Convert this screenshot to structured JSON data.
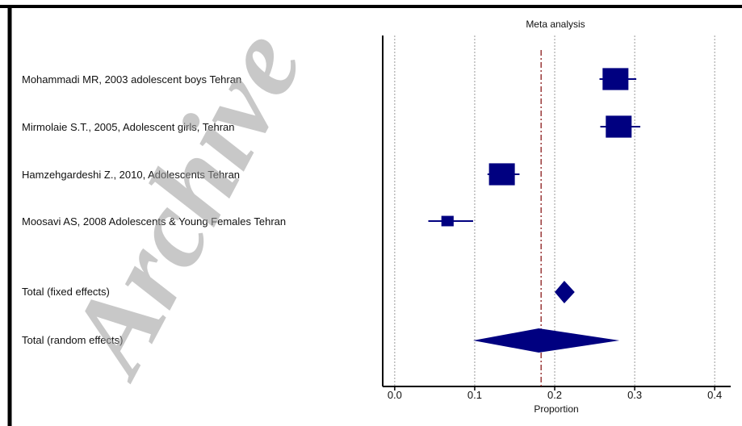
{
  "watermark": "Archive",
  "chart_data": {
    "type": "forest",
    "title": "Meta analysis",
    "xlabel": "Proportion",
    "xlim": [
      -0.015,
      0.42
    ],
    "xticks": [
      0.0,
      0.1,
      0.2,
      0.3,
      0.4
    ],
    "xtick_labels": [
      "0.0",
      "0.1",
      "0.2",
      "0.3",
      "0.4"
    ],
    "reference_line": 0.183,
    "grid": "vertical dotted at ticks",
    "colors": {
      "marker": "#000080",
      "reference": "#8b1a1a",
      "grid": "#9a9a9a"
    },
    "studies": [
      {
        "label": "Mohammadi MR, 2003  adolescent boys  Tehran",
        "estimate": 0.276,
        "ci": [
          0.256,
          0.302
        ],
        "weight": 1.0
      },
      {
        "label": "Mirmolaie S.T., 2005, Adolescent girls, Tehran",
        "estimate": 0.28,
        "ci": [
          0.257,
          0.307
        ],
        "weight": 1.0
      },
      {
        "label": "Hamzehgardeshi Z., 2010, Adolescents Tehran",
        "estimate": 0.134,
        "ci": [
          0.116,
          0.156
        ],
        "weight": 1.0
      },
      {
        "label": "Moosavi AS, 2008  Adolescents & Young Females  Tehran",
        "estimate": 0.066,
        "ci": [
          0.042,
          0.098
        ],
        "weight": 0.3
      }
    ],
    "pooled": [
      {
        "label": "Total (fixed effects)",
        "estimate": 0.212,
        "ci": [
          0.2,
          0.225
        ]
      },
      {
        "label": "Total (random effects)",
        "estimate": 0.18,
        "ci": [
          0.098,
          0.281
        ]
      }
    ]
  }
}
